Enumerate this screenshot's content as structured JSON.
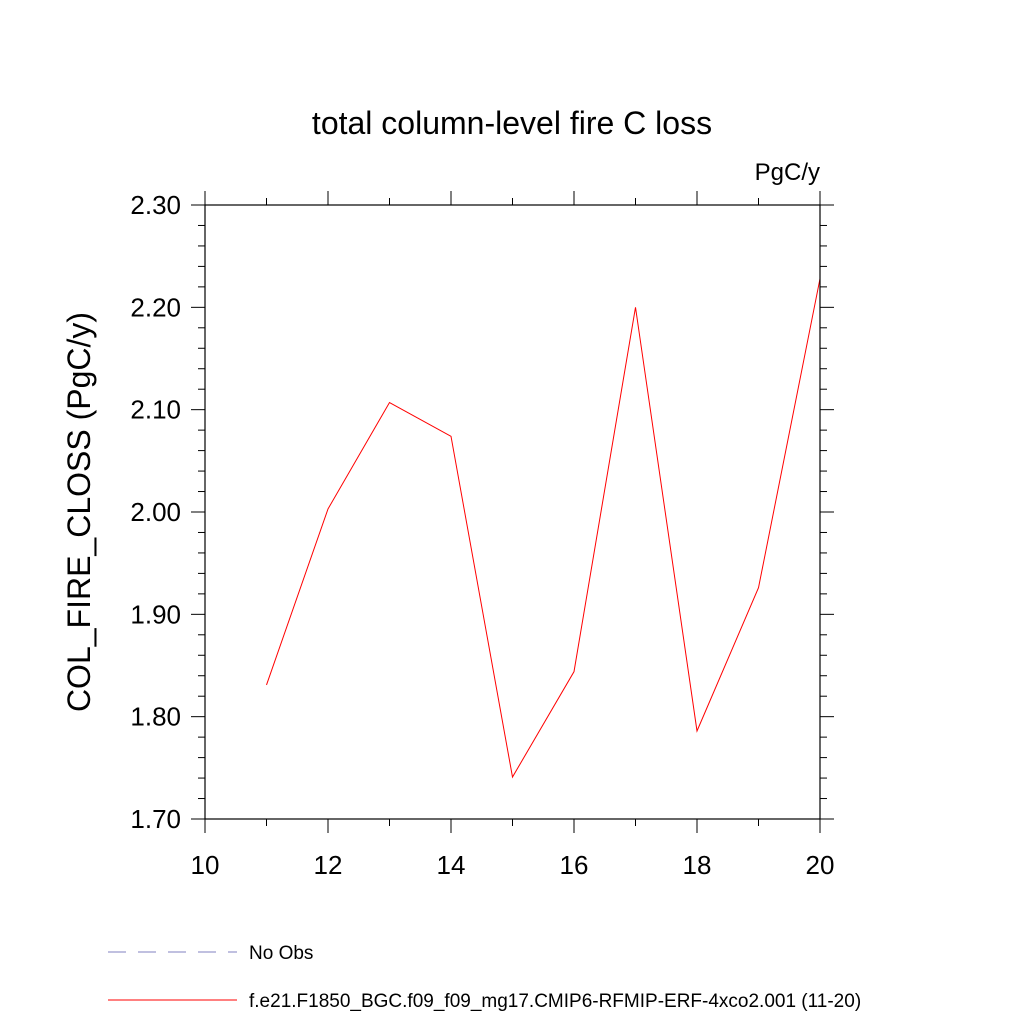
{
  "chart_data": {
    "type": "line",
    "title": "total column-level fire C loss",
    "units_label": "PgC/y",
    "ylabel": "COL_FIRE_CLOSS  (PgC/y)",
    "xlabel": "",
    "xlim": [
      10,
      20
    ],
    "ylim": [
      1.7,
      2.3
    ],
    "x_ticks": [
      10,
      12,
      14,
      16,
      18,
      20
    ],
    "x_tick_labels": [
      "10",
      "12",
      "14",
      "16",
      "18",
      "20"
    ],
    "x_minor_step": 1,
    "y_ticks": [
      1.7,
      1.8,
      1.9,
      2.0,
      2.1,
      2.2,
      2.3
    ],
    "y_tick_labels": [
      "1.70",
      "1.80",
      "1.90",
      "2.00",
      "2.10",
      "2.20",
      "2.30"
    ],
    "y_minor_step": 0.02,
    "grid": false,
    "legend_position": "bottom",
    "series": [
      {
        "name": "f.e21.F1850_BGC.f09_f09_mg17.CMIP6-RFMIP-ERF-4xco2.001 (11-20)",
        "color": "#ff0000",
        "dash": "solid",
        "x": [
          11,
          12,
          13,
          14,
          15,
          16,
          17,
          18,
          19,
          20
        ],
        "y": [
          1.831,
          2.003,
          2.107,
          2.074,
          1.741,
          1.844,
          2.2,
          1.786,
          1.926,
          2.228
        ]
      }
    ],
    "legend": [
      {
        "label": "No Obs",
        "color": "#8080c0",
        "dash": "dashed"
      },
      {
        "label": "f.e21.F1850_BGC.f09_f09_mg17.CMIP6-RFMIP-ERF-4xco2.001 (11-20)",
        "color": "#ff0000",
        "dash": "solid"
      }
    ]
  }
}
